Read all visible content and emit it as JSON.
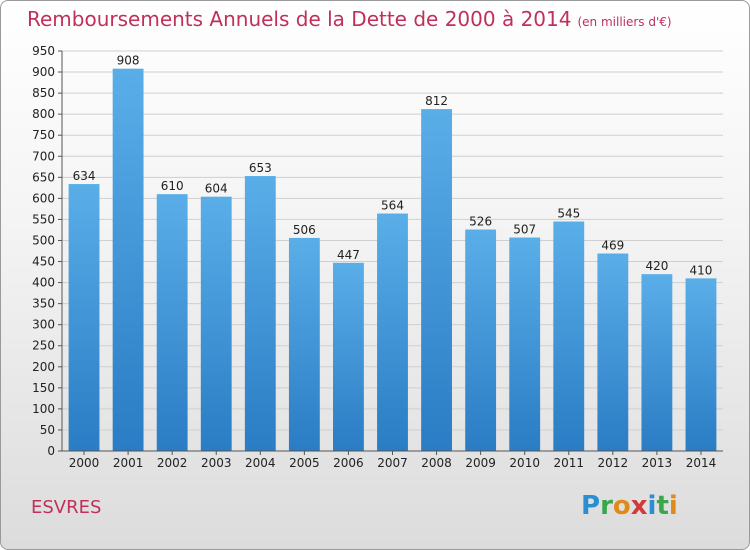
{
  "header": {
    "title": "Remboursements Annuels de la Dette de 2000 à 2014",
    "unit": "(en milliers d'€)"
  },
  "footer": {
    "place": "ESVRES",
    "logo_letters": [
      "P",
      "r",
      "o",
      "x",
      "i",
      "t",
      "i"
    ],
    "logo_colors": [
      "#2a8fd0",
      "#3aa84a",
      "#e08a1a",
      "#d23a3a",
      "#2a8fd0",
      "#3aa84a",
      "#e08a1a"
    ]
  },
  "chart_data": {
    "type": "bar",
    "title": "Remboursements Annuels de la Dette de 2000 à 2014",
    "xlabel": "",
    "ylabel": "",
    "categories": [
      "2000",
      "2001",
      "2002",
      "2003",
      "2004",
      "2005",
      "2006",
      "2007",
      "2008",
      "2009",
      "2010",
      "2011",
      "2012",
      "2013",
      "2014"
    ],
    "values": [
      634,
      908,
      610,
      604,
      653,
      506,
      447,
      564,
      812,
      526,
      507,
      545,
      469,
      420,
      410
    ],
    "ylim": [
      0,
      950
    ],
    "yticks": [
      0,
      50,
      100,
      150,
      200,
      250,
      300,
      350,
      400,
      450,
      500,
      550,
      600,
      650,
      700,
      750,
      800,
      850,
      900,
      950
    ],
    "grid": true,
    "bar_color_top": "#5aaee8",
    "bar_color_bottom": "#2a7cc4"
  }
}
